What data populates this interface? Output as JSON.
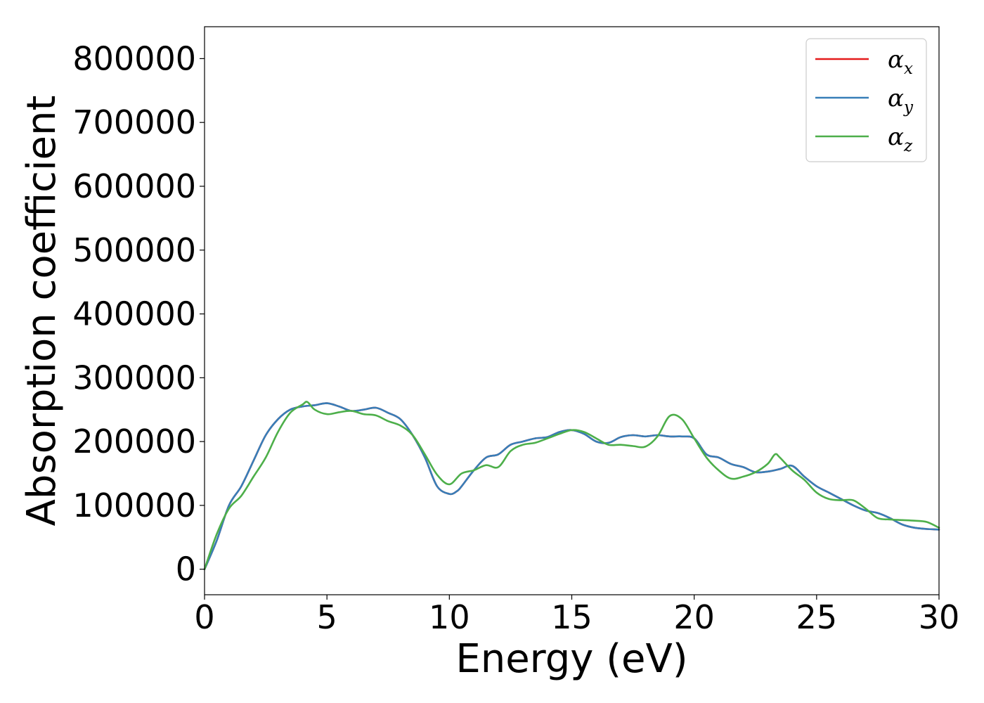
{
  "chart_data": {
    "type": "line",
    "xlabel": "Energy (eV)",
    "ylabel": "Absorption coefficient",
    "xlim": [
      0,
      30
    ],
    "ylim": [
      -40000,
      850000
    ],
    "xticks": [
      0,
      5,
      10,
      15,
      20,
      25,
      30
    ],
    "yticks": [
      0,
      100000,
      200000,
      300000,
      400000,
      500000,
      600000,
      700000,
      800000
    ],
    "grid": false,
    "legend_position": "upper right",
    "series": [
      {
        "name": "α_x",
        "symbol": "α",
        "subscript": "x",
        "color": "#e41a1c",
        "x": [
          0,
          0.5,
          1.0,
          1.5,
          2.0,
          2.5,
          3.0,
          3.5,
          4.0,
          4.5,
          5.0,
          5.5,
          6.0,
          6.5,
          7.0,
          7.5,
          8.0,
          8.5,
          9.0,
          9.5,
          10.0,
          10.3,
          10.5,
          11.0,
          11.5,
          12.0,
          12.5,
          13.0,
          13.5,
          14.0,
          14.5,
          15.0,
          15.5,
          16.0,
          16.5,
          17.0,
          17.5,
          18.0,
          18.5,
          19.0,
          19.5,
          20.0,
          20.5,
          21.0,
          21.5,
          22.0,
          22.5,
          23.0,
          23.5,
          24.0,
          24.5,
          25.0,
          25.5,
          26.0,
          26.5,
          27.0,
          27.5,
          28.0,
          28.5,
          29.0,
          29.5,
          30.0
        ],
        "y": [
          0,
          45000,
          100000,
          130000,
          170000,
          210000,
          235000,
          250000,
          255000,
          257000,
          260000,
          255000,
          248000,
          250000,
          253000,
          245000,
          235000,
          210000,
          175000,
          130000,
          118000,
          122000,
          130000,
          155000,
          175000,
          180000,
          195000,
          200000,
          205000,
          207000,
          215000,
          218000,
          212000,
          200000,
          198000,
          207000,
          210000,
          208000,
          210000,
          208000,
          208000,
          205000,
          180000,
          175000,
          165000,
          160000,
          152000,
          153000,
          157000,
          162000,
          145000,
          130000,
          120000,
          110000,
          100000,
          92000,
          88000,
          80000,
          70000,
          65000,
          63000,
          62000
        ]
      },
      {
        "name": "α_y",
        "symbol": "α",
        "subscript": "y",
        "color": "#377eb8",
        "x": [
          0,
          0.5,
          1.0,
          1.5,
          2.0,
          2.5,
          3.0,
          3.5,
          4.0,
          4.5,
          5.0,
          5.5,
          6.0,
          6.5,
          7.0,
          7.5,
          8.0,
          8.5,
          9.0,
          9.5,
          10.0,
          10.3,
          10.5,
          11.0,
          11.5,
          12.0,
          12.5,
          13.0,
          13.5,
          14.0,
          14.5,
          15.0,
          15.5,
          16.0,
          16.5,
          17.0,
          17.5,
          18.0,
          18.5,
          19.0,
          19.5,
          20.0,
          20.5,
          21.0,
          21.5,
          22.0,
          22.5,
          23.0,
          23.5,
          24.0,
          24.5,
          25.0,
          25.5,
          26.0,
          26.5,
          27.0,
          27.5,
          28.0,
          28.5,
          29.0,
          29.5,
          30.0
        ],
        "y": [
          0,
          45000,
          100000,
          130000,
          170000,
          210000,
          235000,
          250000,
          255000,
          257000,
          260000,
          255000,
          248000,
          250000,
          253000,
          245000,
          235000,
          210000,
          175000,
          130000,
          118000,
          122000,
          130000,
          155000,
          175000,
          180000,
          195000,
          200000,
          205000,
          207000,
          215000,
          218000,
          212000,
          200000,
          198000,
          207000,
          210000,
          208000,
          210000,
          208000,
          208000,
          205000,
          180000,
          175000,
          165000,
          160000,
          152000,
          153000,
          157000,
          162000,
          145000,
          130000,
          120000,
          110000,
          100000,
          92000,
          88000,
          80000,
          70000,
          65000,
          63000,
          62000
        ]
      },
      {
        "name": "α_z",
        "symbol": "α",
        "subscript": "z",
        "color": "#4daf4a",
        "x": [
          0,
          0.5,
          1.0,
          1.5,
          2.0,
          2.5,
          3.0,
          3.5,
          4.0,
          4.2,
          4.5,
          5.0,
          5.5,
          6.0,
          6.5,
          7.0,
          7.5,
          8.0,
          8.5,
          9.0,
          9.5,
          10.0,
          10.5,
          11.0,
          11.5,
          12.0,
          12.5,
          13.0,
          13.5,
          14.0,
          14.5,
          15.0,
          15.5,
          16.0,
          16.5,
          17.0,
          17.5,
          18.0,
          18.5,
          19.0,
          19.5,
          20.0,
          20.5,
          21.0,
          21.5,
          22.0,
          22.5,
          23.0,
          23.3,
          23.5,
          24.0,
          24.5,
          25.0,
          25.5,
          26.0,
          26.5,
          27.0,
          27.5,
          28.0,
          28.5,
          29.0,
          29.5,
          30.0
        ],
        "y": [
          0,
          55000,
          95000,
          115000,
          145000,
          175000,
          215000,
          245000,
          258000,
          262000,
          250000,
          243000,
          246000,
          248000,
          243000,
          241000,
          232000,
          225000,
          210000,
          180000,
          148000,
          133000,
          150000,
          155000,
          163000,
          160000,
          185000,
          195000,
          198000,
          205000,
          212000,
          218000,
          215000,
          205000,
          195000,
          195000,
          193000,
          192000,
          208000,
          240000,
          235000,
          205000,
          175000,
          155000,
          142000,
          145000,
          152000,
          165000,
          180000,
          175000,
          155000,
          140000,
          120000,
          110000,
          108000,
          108000,
          95000,
          80000,
          78000,
          77000,
          76000,
          74000,
          65000
        ]
      }
    ]
  }
}
